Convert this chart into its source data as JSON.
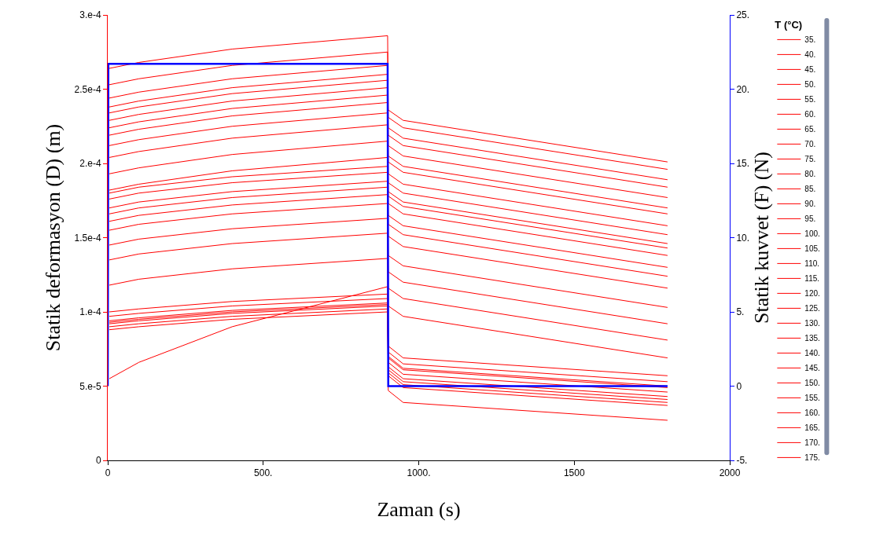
{
  "chart_data": {
    "type": "line",
    "xlabel": "Zaman (s)",
    "ylabel": "Statik deformasyon (D) (m)",
    "y2label": "Statik kuvvet (F) (N)",
    "legend_title": "T (°C)",
    "legend": "right",
    "x": [
      5,
      100,
      400,
      900,
      902,
      950,
      1800
    ],
    "series": [
      {
        "name": "35.",
        "color": "#ff0000",
        "values": [
          5.5e-05,
          6.6e-05,
          9e-05,
          0.000117,
          4.7e-05,
          3.9e-05,
          2.7e-05
        ]
      },
      {
        "name": "40.",
        "color": "#ff0000",
        "values": [
          8.8e-05,
          9e-05,
          9.5e-05,
          0.0001,
          5.7e-05,
          4.9e-05,
          3.7e-05
        ]
      },
      {
        "name": "45.",
        "color": "#ff0000",
        "values": [
          9e-05,
          9.2e-05,
          9.7e-05,
          0.000102,
          5.9e-05,
          5.1e-05,
          3.9e-05
        ]
      },
      {
        "name": "50.",
        "color": "#ff0000",
        "values": [
          9.2e-05,
          9.4e-05,
          9.9e-05,
          0.000104,
          6.1e-05,
          5.3e-05,
          4.1e-05
        ]
      },
      {
        "name": "55.",
        "color": "#ff0000",
        "values": [
          9.3e-05,
          9.5e-05,
          0.0001,
          0.000105,
          6.3e-05,
          5.5e-05,
          4.3e-05
        ]
      },
      {
        "name": "60.",
        "color": "#ff0000",
        "values": [
          9.4e-05,
          9.6e-05,
          0.000101,
          0.000106,
          6.6e-05,
          5.8e-05,
          4.6e-05
        ]
      },
      {
        "name": "65.",
        "color": "#ff0000",
        "values": [
          9.7e-05,
          9.9e-05,
          0.000104,
          0.000109,
          6.9e-05,
          6.1e-05,
          4.9e-05
        ]
      },
      {
        "name": "70.",
        "color": "#ff0000",
        "values": [
          0.0001,
          0.000102,
          0.000107,
          0.000112,
          7e-05,
          6.2e-05,
          5e-05
        ]
      },
      {
        "name": "75.",
        "color": "#ff0000",
        "values": [
          0.000118,
          0.000122,
          0.000129,
          0.000136,
          7.3e-05,
          6.5e-05,
          5.3e-05
        ]
      },
      {
        "name": "80.",
        "color": "#ff0000",
        "values": [
          0.000135,
          0.000139,
          0.000146,
          0.000153,
          7.7e-05,
          6.9e-05,
          5.7e-05
        ]
      },
      {
        "name": "85.",
        "color": "#ff0000",
        "values": [
          0.000145,
          0.000149,
          0.000156,
          0.000163,
          0.000104,
          9.7e-05,
          6.9e-05
        ]
      },
      {
        "name": "90.",
        "color": "#ff0000",
        "values": [
          0.000155,
          0.000159,
          0.000166,
          0.000173,
          0.000116,
          0.000109,
          8.1e-05
        ]
      },
      {
        "name": "95.",
        "color": "#ff0000",
        "values": [
          0.000161,
          0.000165,
          0.000172,
          0.000179,
          0.000127,
          0.00012,
          9.2e-05
        ]
      },
      {
        "name": "100.",
        "color": "#ff0000",
        "values": [
          0.000166,
          0.00017,
          0.000177,
          0.000184,
          0.000138,
          0.000131,
          0.000103
        ]
      },
      {
        "name": "105.",
        "color": "#ff0000",
        "values": [
          0.00017,
          0.000174,
          0.000181,
          0.000188,
          0.000151,
          0.000144,
          0.000116
        ]
      },
      {
        "name": "110.",
        "color": "#ff0000",
        "values": [
          0.000176,
          0.00018,
          0.000187,
          0.000194,
          0.000159,
          0.000152,
          0.000124
        ]
      },
      {
        "name": "115.",
        "color": "#ff0000",
        "values": [
          0.00018,
          0.000184,
          0.000191,
          0.000198,
          0.000165,
          0.000158,
          0.00013
        ]
      },
      {
        "name": "120.",
        "color": "#ff0000",
        "values": [
          0.000182,
          0.000186,
          0.000195,
          0.000204,
          0.000173,
          0.000166,
          0.000138
        ]
      },
      {
        "name": "125.",
        "color": "#ff0000",
        "values": [
          0.000193,
          0.000197,
          0.000206,
          0.000215,
          0.000178,
          0.000171,
          0.000143
        ]
      },
      {
        "name": "130.",
        "color": "#ff0000",
        "values": [
          0.000204,
          0.000208,
          0.000217,
          0.000226,
          0.000181,
          0.000174,
          0.000146
        ]
      },
      {
        "name": "135.",
        "color": "#ff0000",
        "values": [
          0.000212,
          0.000216,
          0.000225,
          0.000234,
          0.000187,
          0.00018,
          0.000152
        ]
      },
      {
        "name": "140.",
        "color": "#ff0000",
        "values": [
          0.000219,
          0.000223,
          0.000232,
          0.000241,
          0.000193,
          0.000186,
          0.000158
        ]
      },
      {
        "name": "145.",
        "color": "#ff0000",
        "values": [
          0.000224,
          0.000228,
          0.000237,
          0.000246,
          0.000201,
          0.000194,
          0.000166
        ]
      },
      {
        "name": "150.",
        "color": "#ff0000",
        "values": [
          0.000229,
          0.000233,
          0.000242,
          0.000251,
          0.000205,
          0.000198,
          0.00017
        ]
      },
      {
        "name": "155.",
        "color": "#ff0000",
        "values": [
          0.000234,
          0.000238,
          0.000247,
          0.000256,
          0.000212,
          0.000205,
          0.000177
        ]
      },
      {
        "name": "160.",
        "color": "#ff0000",
        "values": [
          0.000238,
          0.000242,
          0.000251,
          0.00026,
          0.000219,
          0.000212,
          0.000184
        ]
      },
      {
        "name": "165.",
        "color": "#ff0000",
        "values": [
          0.000244,
          0.000248,
          0.000257,
          0.000266,
          0.000224,
          0.000217,
          0.000189
        ]
      },
      {
        "name": "170.",
        "color": "#ff0000",
        "values": [
          0.000253,
          0.000257,
          0.000266,
          0.000275,
          0.000231,
          0.000224,
          0.000196
        ]
      },
      {
        "name": "175.",
        "color": "#ff0000",
        "values": [
          0.000264,
          0.000268,
          0.000277,
          0.000286,
          0.000236,
          0.000229,
          0.000201
        ]
      },
      {
        "color": "#0000ff",
        "axis": "y2",
        "x": [
          0,
          2,
          900,
          902,
          1800
        ],
        "values": [
          0,
          21.7,
          21.7,
          0,
          0
        ]
      }
    ],
    "xlim": [
      0,
      2000
    ],
    "xticks": [
      0,
      {
        "value": 500,
        "label": "500."
      },
      {
        "value": 1000,
        "label": "1000."
      },
      1500,
      2000
    ],
    "ylim": [
      0,
      0.0003
    ],
    "yticks": [
      0,
      {
        "value": 5e-05,
        "label": "5.e-5"
      },
      {
        "value": 0.0001,
        "label": "1.e-4"
      },
      {
        "value": 0.00015,
        "label": "1.5e-4"
      },
      {
        "value": 0.0002,
        "label": "2.e-4"
      },
      {
        "value": 0.00025,
        "label": "2.5e-4"
      },
      {
        "value": 0.0003,
        "label": "3.e-4"
      }
    ],
    "y2lim": [
      -5,
      25
    ],
    "y2ticks": [
      {
        "value": -5,
        "label": "-5."
      },
      0,
      {
        "value": 5,
        "label": "5."
      },
      {
        "value": 10,
        "label": "10."
      },
      {
        "value": 15,
        "label": "15."
      },
      {
        "value": 20,
        "label": "20."
      },
      {
        "value": 25,
        "label": "25."
      }
    ],
    "marker": "none",
    "line_style": "solid"
  }
}
